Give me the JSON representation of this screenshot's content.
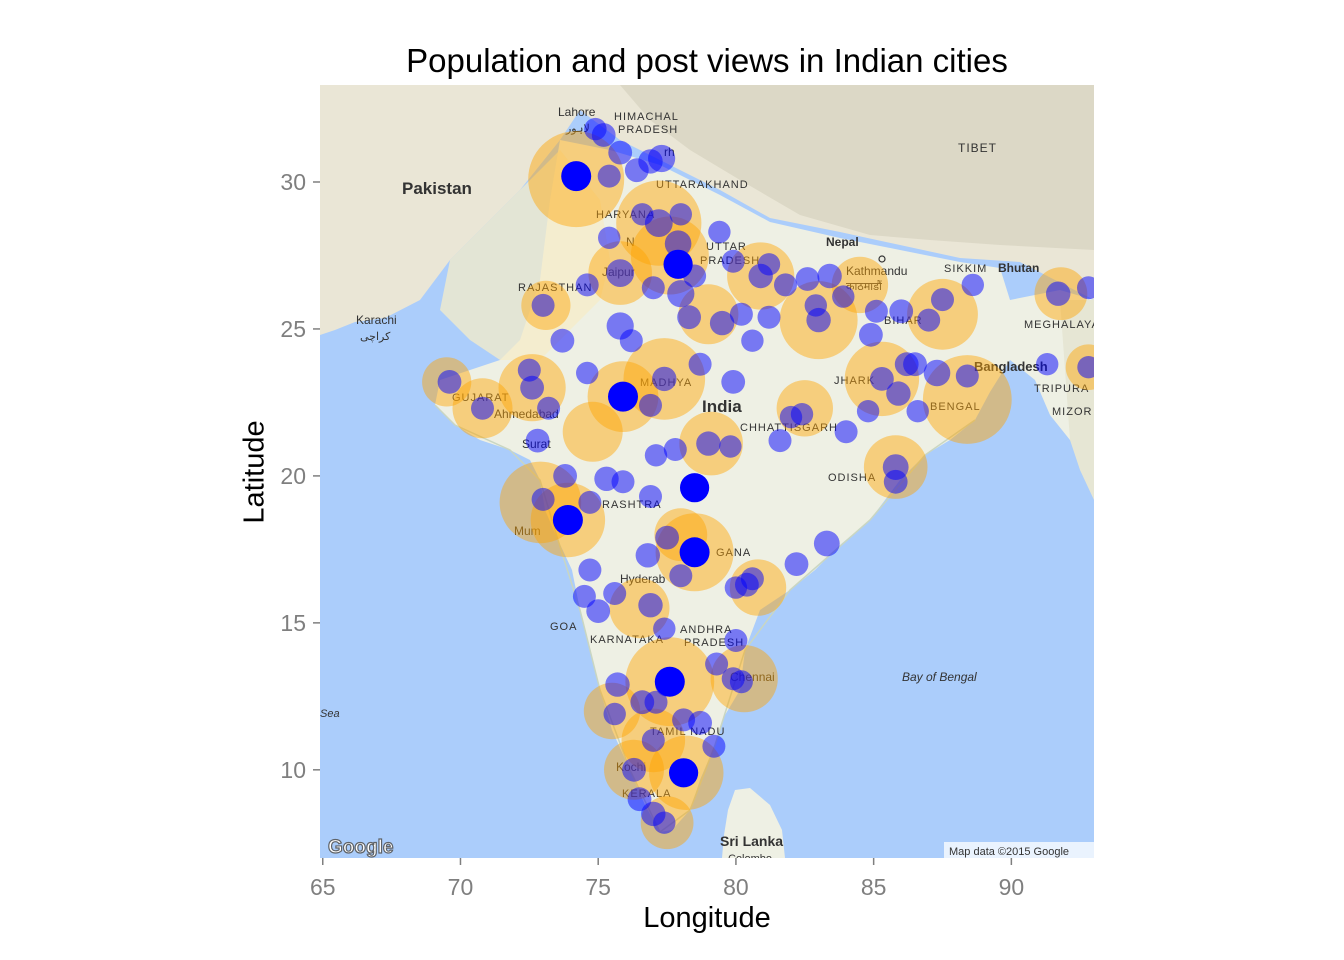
{
  "chart_data": {
    "type": "scatter",
    "title": "Population and post views in Indian cities",
    "xlabel": "Longitude",
    "ylabel": "Latitude",
    "xlim": [
      64.9,
      93.0
    ],
    "ylim": [
      7.0,
      33.3
    ],
    "x_ticks": [
      65,
      70,
      75,
      80,
      85,
      90
    ],
    "y_ticks": [
      10,
      15,
      20,
      25,
      30
    ],
    "grid": false,
    "legend": "none",
    "background": "Google map tile of the Indian subcontinent",
    "series": [
      {
        "name": "population",
        "color": "#ffa500",
        "points": [
          {
            "lon": 74.2,
            "lat": 30.1,
            "v": 1.0
          },
          {
            "lon": 77.2,
            "lat": 28.6,
            "v": 0.85
          },
          {
            "lon": 77.6,
            "lat": 27.5,
            "v": 0.75
          },
          {
            "lon": 72.9,
            "lat": 19.1,
            "v": 0.8
          },
          {
            "lon": 73.9,
            "lat": 18.5,
            "v": 0.7
          },
          {
            "lon": 77.6,
            "lat": 13.0,
            "v": 0.9
          },
          {
            "lon": 78.5,
            "lat": 17.4,
            "v": 0.75
          },
          {
            "lon": 80.3,
            "lat": 13.1,
            "v": 0.6
          },
          {
            "lon": 88.4,
            "lat": 22.6,
            "v": 0.9
          },
          {
            "lon": 72.6,
            "lat": 23.0,
            "v": 0.6
          },
          {
            "lon": 75.8,
            "lat": 26.9,
            "v": 0.55
          },
          {
            "lon": 80.9,
            "lat": 26.8,
            "v": 0.6
          },
          {
            "lon": 75.9,
            "lat": 22.7,
            "v": 0.65
          },
          {
            "lon": 77.4,
            "lat": 23.3,
            "v": 0.8
          },
          {
            "lon": 79.1,
            "lat": 21.1,
            "v": 0.55
          },
          {
            "lon": 85.3,
            "lat": 23.3,
            "v": 0.7
          },
          {
            "lon": 85.8,
            "lat": 20.3,
            "v": 0.55
          },
          {
            "lon": 78.2,
            "lat": 9.9,
            "v": 0.7
          },
          {
            "lon": 76.3,
            "lat": 10.0,
            "v": 0.5
          },
          {
            "lon": 77.0,
            "lat": 11.0,
            "v": 0.55
          },
          {
            "lon": 83.0,
            "lat": 25.3,
            "v": 0.75
          },
          {
            "lon": 87.5,
            "lat": 25.5,
            "v": 0.65
          },
          {
            "lon": 74.8,
            "lat": 21.5,
            "v": 0.5
          },
          {
            "lon": 70.8,
            "lat": 22.3,
            "v": 0.5
          },
          {
            "lon": 76.5,
            "lat": 15.5,
            "v": 0.5
          },
          {
            "lon": 80.8,
            "lat": 16.2,
            "v": 0.45
          },
          {
            "lon": 79.0,
            "lat": 25.5,
            "v": 0.5
          },
          {
            "lon": 84.5,
            "lat": 26.5,
            "v": 0.45
          },
          {
            "lon": 91.8,
            "lat": 26.2,
            "v": 0.4
          },
          {
            "lon": 77.5,
            "lat": 8.2,
            "v": 0.4
          },
          {
            "lon": 75.5,
            "lat": 12.0,
            "v": 0.45
          },
          {
            "lon": 69.5,
            "lat": 23.2,
            "v": 0.35
          },
          {
            "lon": 73.1,
            "lat": 25.8,
            "v": 0.35
          },
          {
            "lon": 78.0,
            "lat": 18.0,
            "v": 0.4
          },
          {
            "lon": 82.5,
            "lat": 22.3,
            "v": 0.45
          },
          {
            "lon": 92.8,
            "lat": 23.7,
            "v": 0.3
          }
        ]
      },
      {
        "name": "post views",
        "color": "#0000ff",
        "points": [
          {
            "lon": 74.2,
            "lat": 30.2,
            "v": 1.0
          },
          {
            "lon": 75.9,
            "lat": 22.7,
            "v": 1.0
          },
          {
            "lon": 73.9,
            "lat": 18.5,
            "v": 1.0
          },
          {
            "lon": 78.5,
            "lat": 17.4,
            "v": 1.0
          },
          {
            "lon": 78.5,
            "lat": 19.6,
            "v": 0.95
          },
          {
            "lon": 77.6,
            "lat": 13.0,
            "v": 1.0
          },
          {
            "lon": 78.1,
            "lat": 9.9,
            "v": 0.95
          },
          {
            "lon": 77.9,
            "lat": 27.2,
            "v": 0.95
          },
          {
            "lon": 77.2,
            "lat": 28.6,
            "v": 0.85
          },
          {
            "lon": 77.3,
            "lat": 30.8,
            "v": 0.8
          },
          {
            "lon": 75.8,
            "lat": 26.9,
            "v": 0.85
          },
          {
            "lon": 75.8,
            "lat": 25.1,
            "v": 0.8
          },
          {
            "lon": 78.0,
            "lat": 26.2,
            "v": 0.8
          },
          {
            "lon": 77.9,
            "lat": 27.9,
            "v": 0.75
          },
          {
            "lon": 76.9,
            "lat": 30.7,
            "v": 0.6
          },
          {
            "lon": 75.8,
            "lat": 31.0,
            "v": 0.55
          },
          {
            "lon": 75.2,
            "lat": 31.6,
            "v": 0.55
          },
          {
            "lon": 74.9,
            "lat": 31.8,
            "v": 0.45
          },
          {
            "lon": 76.4,
            "lat": 30.4,
            "v": 0.55
          },
          {
            "lon": 75.4,
            "lat": 30.2,
            "v": 0.5
          },
          {
            "lon": 78.0,
            "lat": 28.9,
            "v": 0.45
          },
          {
            "lon": 76.6,
            "lat": 28.9,
            "v": 0.45
          },
          {
            "lon": 75.4,
            "lat": 28.1,
            "v": 0.45
          },
          {
            "lon": 77.0,
            "lat": 26.4,
            "v": 0.5
          },
          {
            "lon": 78.5,
            "lat": 26.8,
            "v": 0.5
          },
          {
            "lon": 79.4,
            "lat": 28.3,
            "v": 0.45
          },
          {
            "lon": 79.9,
            "lat": 27.3,
            "v": 0.5
          },
          {
            "lon": 80.9,
            "lat": 26.8,
            "v": 0.6
          },
          {
            "lon": 81.8,
            "lat": 26.5,
            "v": 0.5
          },
          {
            "lon": 82.6,
            "lat": 26.7,
            "v": 0.55
          },
          {
            "lon": 83.4,
            "lat": 26.8,
            "v": 0.6
          },
          {
            "lon": 83.9,
            "lat": 26.1,
            "v": 0.45
          },
          {
            "lon": 83.0,
            "lat": 25.3,
            "v": 0.6
          },
          {
            "lon": 84.9,
            "lat": 24.8,
            "v": 0.55
          },
          {
            "lon": 85.1,
            "lat": 25.6,
            "v": 0.5
          },
          {
            "lon": 86.0,
            "lat": 25.6,
            "v": 0.55
          },
          {
            "lon": 87.0,
            "lat": 25.3,
            "v": 0.5
          },
          {
            "lon": 87.5,
            "lat": 26.0,
            "v": 0.5
          },
          {
            "lon": 86.5,
            "lat": 23.8,
            "v": 0.55
          },
          {
            "lon": 87.3,
            "lat": 23.5,
            "v": 0.75
          },
          {
            "lon": 88.4,
            "lat": 23.4,
            "v": 0.5
          },
          {
            "lon": 85.9,
            "lat": 22.8,
            "v": 0.6
          },
          {
            "lon": 85.3,
            "lat": 23.3,
            "v": 0.55
          },
          {
            "lon": 86.2,
            "lat": 23.8,
            "v": 0.55
          },
          {
            "lon": 86.6,
            "lat": 22.2,
            "v": 0.45
          },
          {
            "lon": 88.6,
            "lat": 26.5,
            "v": 0.45
          },
          {
            "lon": 85.8,
            "lat": 20.3,
            "v": 0.7
          },
          {
            "lon": 85.8,
            "lat": 19.8,
            "v": 0.55
          },
          {
            "lon": 81.6,
            "lat": 21.2,
            "v": 0.5
          },
          {
            "lon": 82.0,
            "lat": 22.0,
            "v": 0.45
          },
          {
            "lon": 82.4,
            "lat": 22.1,
            "v": 0.45
          },
          {
            "lon": 84.0,
            "lat": 21.5,
            "v": 0.5
          },
          {
            "lon": 84.8,
            "lat": 22.2,
            "v": 0.45
          },
          {
            "lon": 83.3,
            "lat": 17.7,
            "v": 0.7
          },
          {
            "lon": 82.2,
            "lat": 17.0,
            "v": 0.55
          },
          {
            "lon": 80.6,
            "lat": 16.5,
            "v": 0.5
          },
          {
            "lon": 80.4,
            "lat": 16.3,
            "v": 0.55
          },
          {
            "lon": 80.0,
            "lat": 16.2,
            "v": 0.45
          },
          {
            "lon": 80.0,
            "lat": 14.4,
            "v": 0.5
          },
          {
            "lon": 79.9,
            "lat": 13.1,
            "v": 0.5
          },
          {
            "lon": 80.2,
            "lat": 13.0,
            "v": 0.5
          },
          {
            "lon": 79.3,
            "lat": 13.6,
            "v": 0.5
          },
          {
            "lon": 79.2,
            "lat": 10.8,
            "v": 0.5
          },
          {
            "lon": 78.7,
            "lat": 11.6,
            "v": 0.55
          },
          {
            "lon": 78.1,
            "lat": 11.7,
            "v": 0.5
          },
          {
            "lon": 77.0,
            "lat": 11.0,
            "v": 0.5
          },
          {
            "lon": 77.1,
            "lat": 12.3,
            "v": 0.5
          },
          {
            "lon": 76.6,
            "lat": 12.3,
            "v": 0.55
          },
          {
            "lon": 75.7,
            "lat": 12.9,
            "v": 0.6
          },
          {
            "lon": 75.6,
            "lat": 11.9,
            "v": 0.45
          },
          {
            "lon": 76.3,
            "lat": 10.0,
            "v": 0.55
          },
          {
            "lon": 76.5,
            "lat": 9.0,
            "v": 0.55
          },
          {
            "lon": 77.0,
            "lat": 8.5,
            "v": 0.6
          },
          {
            "lon": 77.4,
            "lat": 8.2,
            "v": 0.45
          },
          {
            "lon": 77.4,
            "lat": 14.8,
            "v": 0.45
          },
          {
            "lon": 76.9,
            "lat": 15.6,
            "v": 0.6
          },
          {
            "lon": 77.5,
            "lat": 12.9,
            "v": 0.55
          },
          {
            "lon": 74.5,
            "lat": 15.9,
            "v": 0.5
          },
          {
            "lon": 75.0,
            "lat": 15.4,
            "v": 0.55
          },
          {
            "lon": 74.7,
            "lat": 16.8,
            "v": 0.5
          },
          {
            "lon": 75.6,
            "lat": 16.0,
            "v": 0.5
          },
          {
            "lon": 77.5,
            "lat": 17.9,
            "v": 0.55
          },
          {
            "lon": 78.0,
            "lat": 16.6,
            "v": 0.5
          },
          {
            "lon": 76.8,
            "lat": 17.3,
            "v": 0.6
          },
          {
            "lon": 76.9,
            "lat": 19.3,
            "v": 0.5
          },
          {
            "lon": 75.3,
            "lat": 19.9,
            "v": 0.6
          },
          {
            "lon": 75.9,
            "lat": 19.8,
            "v": 0.5
          },
          {
            "lon": 74.7,
            "lat": 19.1,
            "v": 0.5
          },
          {
            "lon": 73.8,
            "lat": 20.0,
            "v": 0.55
          },
          {
            "lon": 73.0,
            "lat": 19.2,
            "v": 0.5
          },
          {
            "lon": 72.8,
            "lat": 21.2,
            "v": 0.55
          },
          {
            "lon": 73.2,
            "lat": 22.3,
            "v": 0.5
          },
          {
            "lon": 72.6,
            "lat": 23.0,
            "v": 0.55
          },
          {
            "lon": 70.8,
            "lat": 22.3,
            "v": 0.5
          },
          {
            "lon": 69.6,
            "lat": 23.2,
            "v": 0.55
          },
          {
            "lon": 72.5,
            "lat": 23.6,
            "v": 0.5
          },
          {
            "lon": 74.6,
            "lat": 23.5,
            "v": 0.45
          },
          {
            "lon": 73.7,
            "lat": 24.6,
            "v": 0.55
          },
          {
            "lon": 73.0,
            "lat": 25.8,
            "v": 0.5
          },
          {
            "lon": 74.6,
            "lat": 26.5,
            "v": 0.5
          },
          {
            "lon": 76.2,
            "lat": 24.6,
            "v": 0.5
          },
          {
            "lon": 76.9,
            "lat": 22.4,
            "v": 0.5
          },
          {
            "lon": 77.4,
            "lat": 23.3,
            "v": 0.6
          },
          {
            "lon": 78.7,
            "lat": 23.8,
            "v": 0.5
          },
          {
            "lon": 79.9,
            "lat": 23.2,
            "v": 0.55
          },
          {
            "lon": 79.0,
            "lat": 21.1,
            "v": 0.6
          },
          {
            "lon": 79.8,
            "lat": 21.0,
            "v": 0.45
          },
          {
            "lon": 77.8,
            "lat": 20.9,
            "v": 0.5
          },
          {
            "lon": 77.1,
            "lat": 20.7,
            "v": 0.45
          },
          {
            "lon": 81.2,
            "lat": 25.4,
            "v": 0.5
          },
          {
            "lon": 79.5,
            "lat": 25.2,
            "v": 0.6
          },
          {
            "lon": 78.3,
            "lat": 25.4,
            "v": 0.55
          },
          {
            "lon": 80.2,
            "lat": 25.5,
            "v": 0.5
          },
          {
            "lon": 80.6,
            "lat": 24.6,
            "v": 0.45
          },
          {
            "lon": 91.7,
            "lat": 26.2,
            "v": 0.6
          },
          {
            "lon": 92.8,
            "lat": 26.4,
            "v": 0.5
          },
          {
            "lon": 92.8,
            "lat": 23.7,
            "v": 0.45
          },
          {
            "lon": 91.3,
            "lat": 23.8,
            "v": 0.45
          },
          {
            "lon": 82.9,
            "lat": 25.8,
            "v": 0.45
          },
          {
            "lon": 81.2,
            "lat": 27.2,
            "v": 0.45
          }
        ]
      }
    ]
  },
  "map_labels": {
    "pakistan": "Pakistan",
    "lahore": "Lahore",
    "lahore_urdu": "لاہور",
    "himachal": "HIMACHAL",
    "pradesh_hp": "PRADESH",
    "chandigarh": "rh",
    "uttarakhand": "UTTARAKHAND",
    "tibet": "TIBET",
    "haryana": "HARYANA",
    "new_delhi": "N",
    "uttar": "UTTAR",
    "pradesh_up": "PRADESH",
    "nepal": "Nepal",
    "kathmandu": "Kathmandu",
    "kathmandu_local": "काठमाडौं",
    "sikkim": "SIKKIM",
    "bhutan": "Bhutan",
    "rajasthan": "RAJASTHAN",
    "jaipur": "Jaipur",
    "karachi": "Karachi",
    "karachi_urdu": "کراچی",
    "bihar": "BIHAR",
    "meghalaya": "MEGHALAYA",
    "bangladesh": "Bangladesh",
    "tripura": "TRIPURA",
    "mizoram": "MIZOR",
    "gujarat": "GUJARAT",
    "ahmedabad": "Ahmedabad",
    "madhya": "MADHYA",
    "india": "India",
    "jharkhand": "JHARK",
    "west_bengal": "BENGAL",
    "chhattisgarh": "CHHATTISGARH",
    "surat": "Surat",
    "odisha": "ODISHA",
    "maharashtra": "RASHTRA",
    "mumbai": "Mum",
    "telangana": "GANA",
    "hyderabad": "Hyderab",
    "goa": "GOA",
    "karnataka": "KARNATAKA",
    "andhra": "ANDHRA",
    "pradesh_ap": "PRADESH",
    "chennai": "Chennai",
    "bay_of_bengal": "Bay of Bengal",
    "arabian_sea": "Sea",
    "tamil_nadu": "TAMIL NADU",
    "kochi": "Kochi",
    "kerala": "KERALA",
    "sri_lanka": "Sri Lanka",
    "colombo": "Colombo",
    "google_logo": "Google",
    "attribution": "Map data ©2015 Google"
  }
}
